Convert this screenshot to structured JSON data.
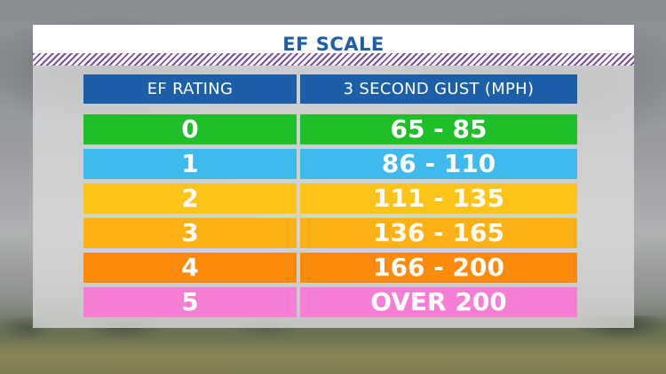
{
  "title": "EF SCALE",
  "table": {
    "headers": [
      "EF RATING",
      "3 SECOND GUST (MPH)"
    ],
    "rows": [
      {
        "rating": "0",
        "gust": "65 - 85",
        "color": "#1fbf2a"
      },
      {
        "rating": "1",
        "gust": "86 - 110",
        "color": "#3fb9ee"
      },
      {
        "rating": "2",
        "gust": "111 - 135",
        "color": "#fdc316"
      },
      {
        "rating": "3",
        "gust": "136 - 165",
        "color": "#fdb115"
      },
      {
        "rating": "4",
        "gust": "166 - 200",
        "color": "#fb8a0d"
      },
      {
        "rating": "5",
        "gust": "OVER 200",
        "color": "#f67ed6"
      }
    ]
  },
  "colors": {
    "header_blue": "#1d5ea8",
    "stripe_purple": "#7b4fa0"
  }
}
